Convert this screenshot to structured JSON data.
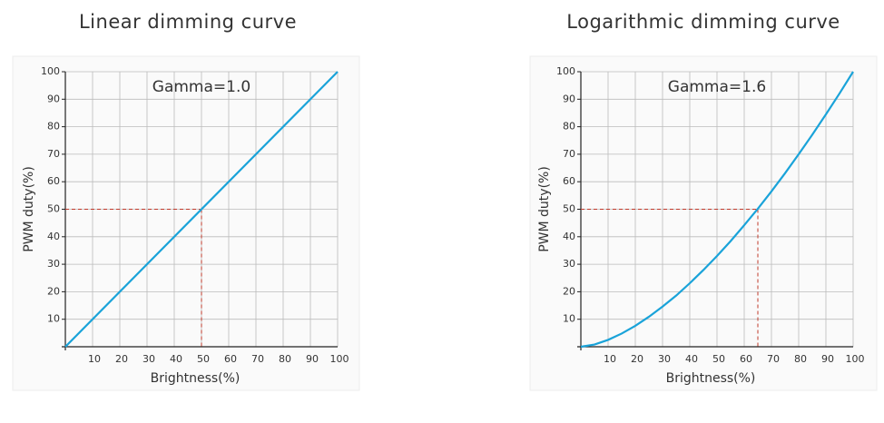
{
  "chart_data": [
    {
      "type": "line",
      "title": "Linear dimming curve",
      "annotation": "Gamma=1.0",
      "x_label": "Brightness(%)",
      "y_label": "PWM duty(%)",
      "x": [
        0,
        100
      ],
      "series": [
        {
          "color": "#1aa3d9",
          "values": [
            0,
            100
          ]
        }
      ],
      "reference_point": {
        "x": 50,
        "y": 50
      },
      "reference_color": "#c0392b",
      "xlim": [
        0,
        100
      ],
      "ylim": [
        0,
        100
      ],
      "xticks": [
        10,
        20,
        30,
        40,
        50,
        60,
        70,
        80,
        90,
        100
      ],
      "yticks": [
        10,
        20,
        30,
        40,
        50,
        60,
        70,
        80,
        90,
        100
      ],
      "grid": true
    },
    {
      "type": "line",
      "title": "Logarithmic dimming curve",
      "annotation": "Gamma=1.6",
      "x_label": "Brightness(%)",
      "y_label": "PWM duty(%)",
      "x": [
        0,
        5,
        10,
        15,
        20,
        25,
        30,
        35,
        40,
        45,
        50,
        55,
        60,
        65,
        70,
        75,
        80,
        85,
        90,
        95,
        100
      ],
      "series": [
        {
          "color": "#1aa3d9",
          "values": [
            0,
            0.8,
            2.5,
            4.8,
            7.6,
            10.9,
            14.6,
            18.6,
            23.1,
            27.9,
            33.0,
            38.4,
            44.2,
            50.2,
            56.5,
            63.1,
            70.0,
            77.1,
            84.5,
            92.1,
            100
          ]
        }
      ],
      "reference_point": {
        "x": 65,
        "y": 50
      },
      "reference_color": "#c0392b",
      "xlim": [
        0,
        100
      ],
      "ylim": [
        0,
        100
      ],
      "xticks": [
        10,
        20,
        30,
        40,
        50,
        60,
        70,
        80,
        90,
        100
      ],
      "yticks": [
        10,
        20,
        30,
        40,
        50,
        60,
        70,
        80,
        90,
        100
      ],
      "grid": true
    }
  ]
}
